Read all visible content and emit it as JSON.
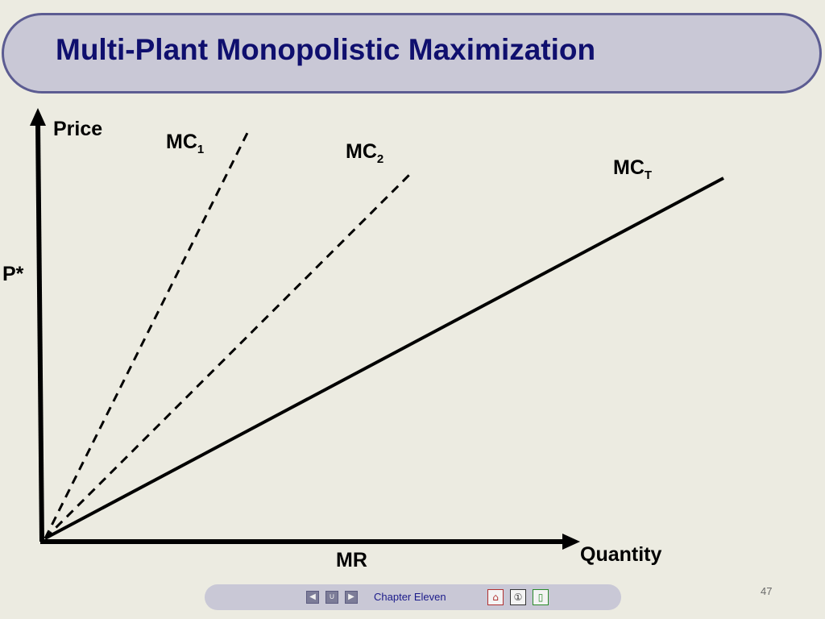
{
  "slide": {
    "title": "Multi-Plant Monopolistic Maximization",
    "page_number": "47"
  },
  "diagram": {
    "y_axis_label": "Price",
    "x_axis_label": "Quantity",
    "price_marker": "P*",
    "mr_label": "MR",
    "curves": [
      {
        "name": "MC",
        "subscript": "1",
        "style": "dashed"
      },
      {
        "name": "MC",
        "subscript": "2",
        "style": "dashed"
      },
      {
        "name": "MC",
        "subscript": "T",
        "style": "solid"
      }
    ]
  },
  "footer": {
    "chapter": "Chapter Eleven",
    "nav_icons": [
      "prev-icon",
      "return-icon",
      "next-icon"
    ],
    "tool_icons": [
      "home-icon",
      "info-icon",
      "exit-icon"
    ]
  },
  "colors": {
    "background": "#ecebe1",
    "title_bar": "#c9c8d6",
    "title_border": "#5c5c92",
    "title_text": "#0f0f6e"
  }
}
